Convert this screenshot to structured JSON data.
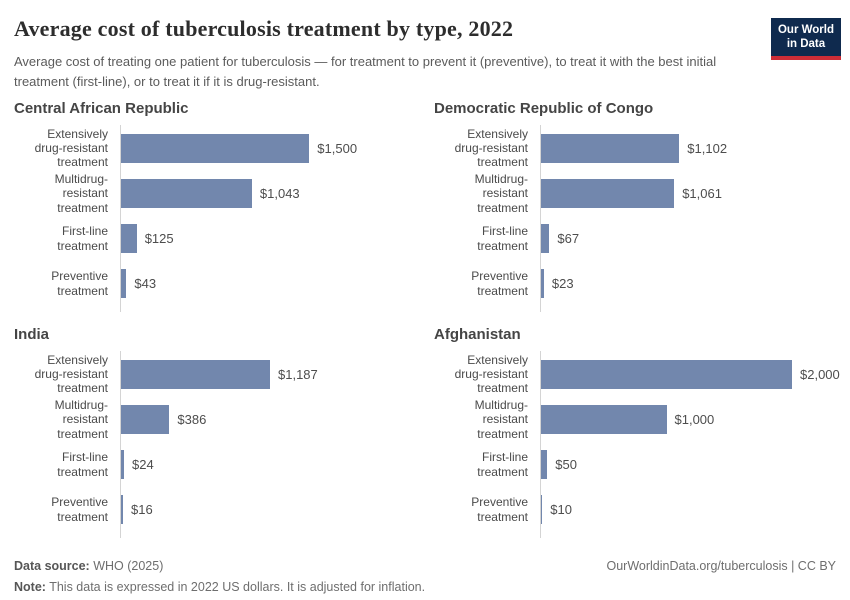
{
  "header": {
    "title": "Average cost of tuberculosis treatment by type, 2022",
    "subtitle": "Average cost of treating one patient for tuberculosis — for treatment to prevent it (preventive), to treat it with the best initial treatment (first-line), or to treat it if it is drug-resistant.",
    "logo": {
      "line1": "Our World",
      "line2": "in Data",
      "bg_color": "#0f2a4e",
      "accent_color": "#cd2d37"
    }
  },
  "chart_data": {
    "type": "bar",
    "orientation": "horizontal",
    "title": "Average cost of tuberculosis treatment by type, 2022",
    "xlim": [
      0,
      2000
    ],
    "xmax": 2000,
    "grid": false,
    "legend": false,
    "bar_color": "#7287ad",
    "axis_color": "#d4d4d4",
    "categories": [
      "Extensively drug-resistant treatment",
      "Multidrug-resistant treatment",
      "First-line treatment",
      "Preventive treatment"
    ],
    "category_lines": [
      [
        "Extensively",
        "drug-resistant",
        "treatment"
      ],
      [
        "Multidrug-resistant",
        "treatment"
      ],
      [
        "First-line treatment"
      ],
      [
        "Preventive",
        "treatment"
      ]
    ],
    "panels": [
      {
        "title": "Central African Republic",
        "values": [
          1500,
          1043,
          125,
          43
        ],
        "value_labels": [
          "$1,500",
          "$1,043",
          "$125",
          "$43"
        ]
      },
      {
        "title": "Democratic Republic of Congo",
        "values": [
          1102,
          1061,
          67,
          23
        ],
        "value_labels": [
          "$1,102",
          "$1,061",
          "$67",
          "$23"
        ]
      },
      {
        "title": "India",
        "values": [
          1187,
          386,
          24,
          16
        ],
        "value_labels": [
          "$1,187",
          "$386",
          "$24",
          "$16"
        ]
      },
      {
        "title": "Afghanistan",
        "values": [
          2000,
          1000,
          50,
          10
        ],
        "value_labels": [
          "$2,000",
          "$1,000",
          "$50",
          "$10"
        ]
      }
    ]
  },
  "footer": {
    "datasource_label": "Data source:",
    "datasource_value": " WHO (2025)",
    "link": "OurWorldinData.org/tuberculosis | CC BY",
    "note_label": "Note:",
    "note_value": " This data is expressed in 2022 US dollars. It is adjusted for inflation."
  }
}
